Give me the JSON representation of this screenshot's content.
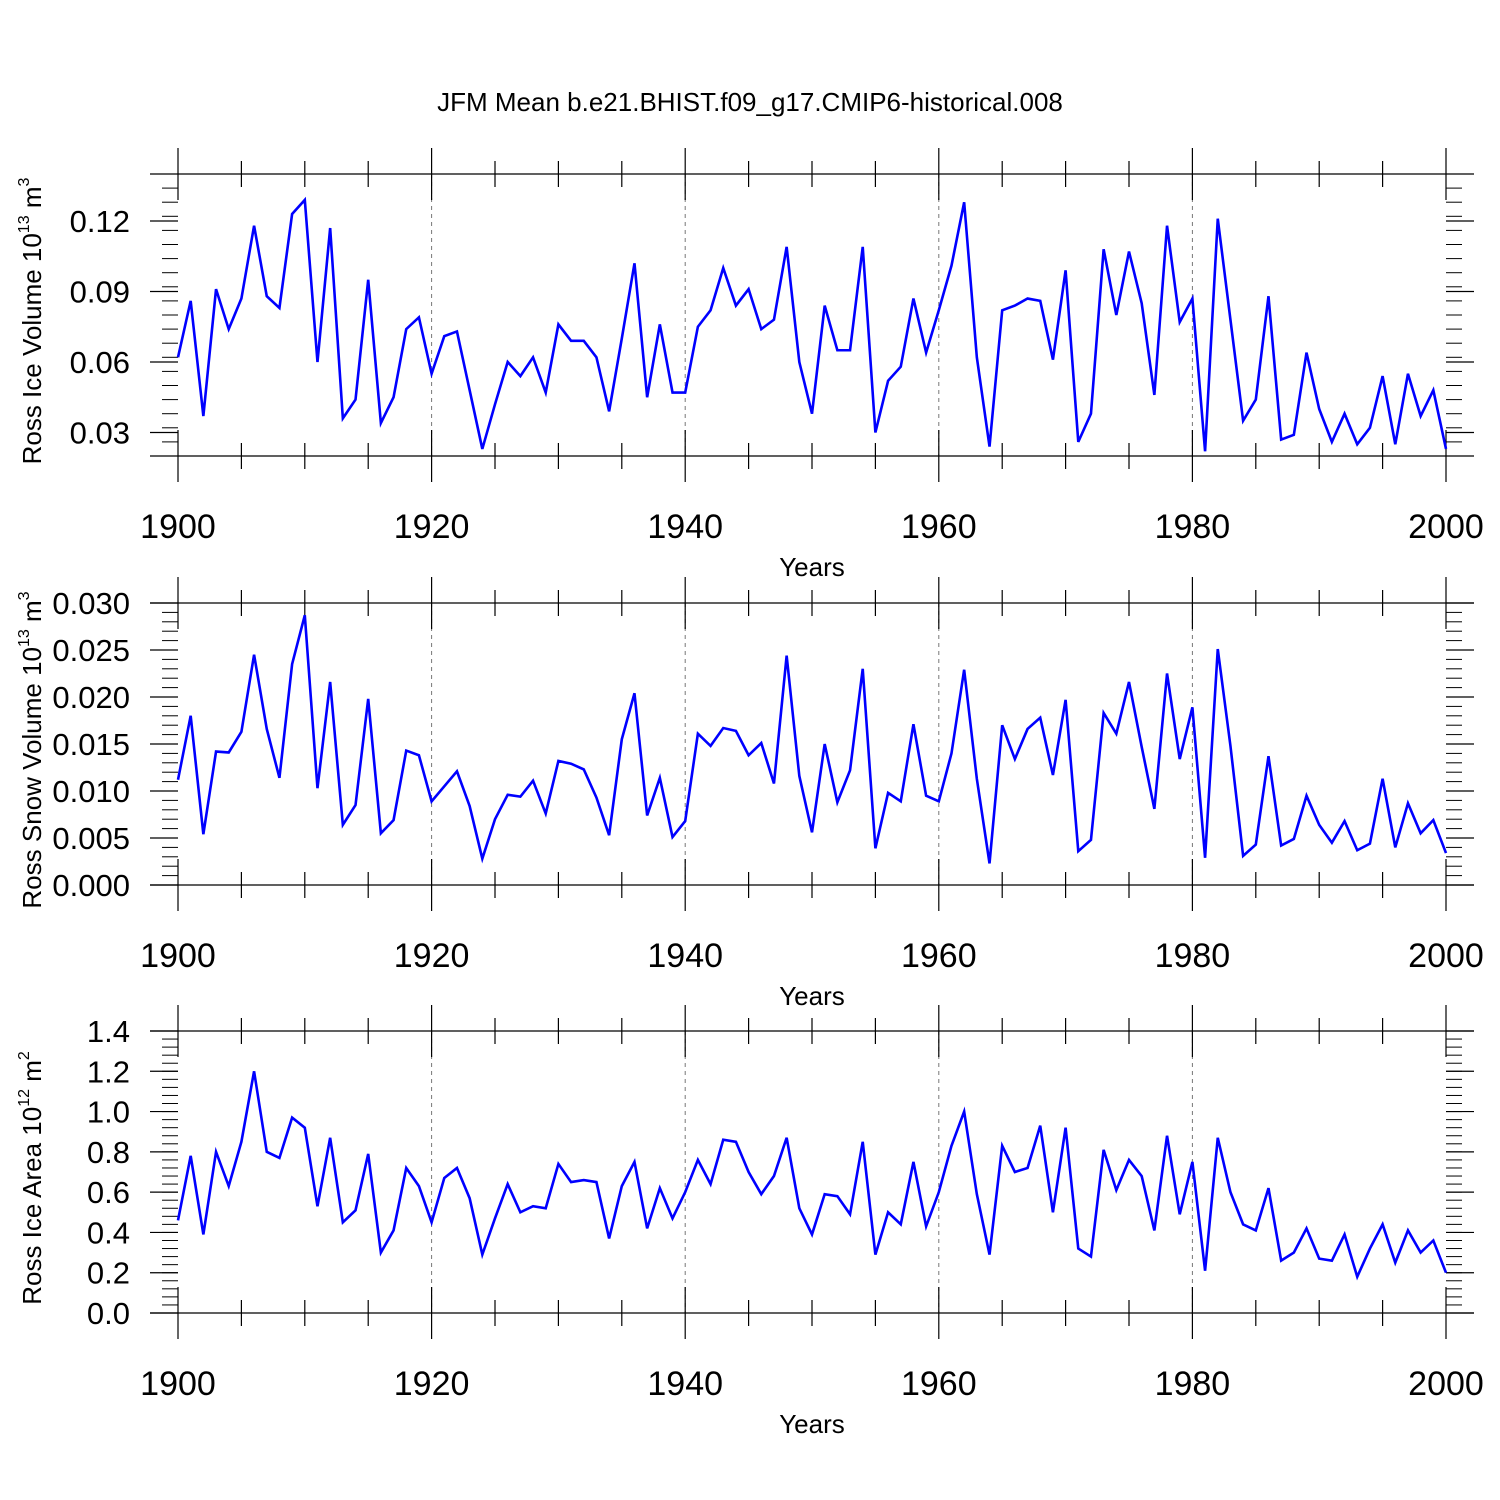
{
  "figure_title": "JFM Mean b.e21.BHIST.f09_g17.CMIP6-historical.008",
  "chart_data": [
    {
      "type": "line",
      "title": "JFM Mean b.e21.BHIST.f09_g17.CMIP6-historical.008",
      "xlabel": "Years",
      "ylabel_main": "Ross Ice Volume 10",
      "ylabel_exp": "13",
      "ylabel_unit": " m",
      "ylabel_unit_exp": "3",
      "xlim": [
        1900,
        2000
      ],
      "ylim": [
        0.02,
        0.14
      ],
      "xticks": [
        1900,
        1920,
        1940,
        1960,
        1980,
        2000
      ],
      "xtick_labels": [
        "1900",
        "1920",
        "1940",
        "1960",
        "1980",
        "2000"
      ],
      "yticks": [
        0.03,
        0.06,
        0.09,
        0.12
      ],
      "ytick_labels": [
        "0.03",
        "0.06",
        "0.09",
        "0.12"
      ],
      "grid": "vertical dashed at major x ticks",
      "series": [
        {
          "name": "Ross Ice Volume",
          "color": "#0000ff",
          "x_start": 1900,
          "values": [
            0.062,
            0.086,
            0.037,
            0.091,
            0.074,
            0.087,
            0.118,
            0.088,
            0.083,
            0.123,
            0.129,
            0.06,
            0.117,
            0.036,
            0.044,
            0.095,
            0.034,
            0.045,
            0.074,
            0.079,
            0.055,
            0.071,
            0.073,
            0.048,
            0.023,
            0.042,
            0.06,
            0.054,
            0.062,
            0.047,
            0.076,
            0.069,
            0.069,
            0.062,
            0.039,
            0.07,
            0.102,
            0.045,
            0.076,
            0.047,
            0.047,
            0.075,
            0.082,
            0.1,
            0.084,
            0.091,
            0.074,
            0.078,
            0.109,
            0.06,
            0.038,
            0.084,
            0.065,
            0.065,
            0.109,
            0.03,
            0.052,
            0.058,
            0.087,
            0.064,
            0.082,
            0.101,
            0.128,
            0.062,
            0.024,
            0.082,
            0.084,
            0.087,
            0.086,
            0.061,
            0.099,
            0.026,
            0.038,
            0.108,
            0.08,
            0.107,
            0.085,
            0.046,
            0.118,
            0.077,
            0.087,
            0.022,
            0.121,
            0.078,
            0.035,
            0.044,
            0.088,
            0.027,
            0.029,
            0.064,
            0.04,
            0.026,
            0.038,
            0.025,
            0.032,
            0.054,
            0.025,
            0.055,
            0.037,
            0.048,
            0.023
          ]
        }
      ]
    },
    {
      "type": "line",
      "xlabel": "Years",
      "ylabel_main": "Ross Snow Volume 10",
      "ylabel_exp": "13",
      "ylabel_unit": " m",
      "ylabel_unit_exp": "3",
      "xlim": [
        1900,
        2000
      ],
      "ylim": [
        0.0,
        0.03
      ],
      "xticks": [
        1900,
        1920,
        1940,
        1960,
        1980,
        2000
      ],
      "xtick_labels": [
        "1900",
        "1920",
        "1940",
        "1960",
        "1980",
        "2000"
      ],
      "yticks": [
        0.0,
        0.005,
        0.01,
        0.015,
        0.02,
        0.025,
        0.03
      ],
      "ytick_labels": [
        "0.000",
        "0.005",
        "0.010",
        "0.015",
        "0.020",
        "0.025",
        "0.030"
      ],
      "grid": "vertical dashed at major x ticks",
      "series": [
        {
          "name": "Ross Snow Volume",
          "color": "#0000ff",
          "x_start": 1900,
          "values": [
            0.0112,
            0.018,
            0.0054,
            0.0142,
            0.0141,
            0.0163,
            0.0245,
            0.0166,
            0.0114,
            0.0235,
            0.0287,
            0.0103,
            0.0216,
            0.0064,
            0.0085,
            0.0198,
            0.0055,
            0.0069,
            0.0143,
            0.0138,
            0.0089,
            0.0105,
            0.0121,
            0.0084,
            0.0028,
            0.007,
            0.0096,
            0.0094,
            0.0111,
            0.0076,
            0.0132,
            0.0129,
            0.0123,
            0.0093,
            0.0053,
            0.0155,
            0.0204,
            0.0074,
            0.0114,
            0.0051,
            0.0068,
            0.0161,
            0.0148,
            0.0167,
            0.0164,
            0.0138,
            0.0151,
            0.0108,
            0.0244,
            0.0116,
            0.0056,
            0.015,
            0.0088,
            0.0122,
            0.023,
            0.0039,
            0.0098,
            0.0089,
            0.0171,
            0.0095,
            0.0089,
            0.014,
            0.0229,
            0.0113,
            0.0023,
            0.017,
            0.0134,
            0.0166,
            0.0178,
            0.0117,
            0.0197,
            0.0036,
            0.0048,
            0.0183,
            0.0161,
            0.0216,
            0.0147,
            0.0081,
            0.0225,
            0.0134,
            0.0189,
            0.0029,
            0.0251,
            0.0148,
            0.0031,
            0.0043,
            0.0137,
            0.0042,
            0.0049,
            0.0095,
            0.0064,
            0.0045,
            0.0068,
            0.0037,
            0.0044,
            0.0113,
            0.004,
            0.0087,
            0.0055,
            0.0069,
            0.0034
          ]
        }
      ]
    },
    {
      "type": "line",
      "xlabel": "Years",
      "ylabel_main": "Ross Ice Area 10",
      "ylabel_exp": "12",
      "ylabel_unit": " m",
      "ylabel_unit_exp": "2",
      "xlim": [
        1900,
        2000
      ],
      "ylim": [
        0.0,
        1.4
      ],
      "xticks": [
        1900,
        1920,
        1940,
        1960,
        1980,
        2000
      ],
      "xtick_labels": [
        "1900",
        "1920",
        "1940",
        "1960",
        "1980",
        "2000"
      ],
      "yticks": [
        0.0,
        0.2,
        0.4,
        0.6,
        0.8,
        1.0,
        1.2,
        1.4
      ],
      "ytick_labels": [
        "0.0",
        "0.2",
        "0.4",
        "0.6",
        "0.8",
        "1.0",
        "1.2",
        "1.4"
      ],
      "grid": "vertical dashed at major x ticks",
      "series": [
        {
          "name": "Ross Ice Area",
          "color": "#0000ff",
          "x_start": 1900,
          "values": [
            0.46,
            0.78,
            0.39,
            0.8,
            0.63,
            0.85,
            1.2,
            0.8,
            0.77,
            0.97,
            0.92,
            0.53,
            0.87,
            0.45,
            0.51,
            0.79,
            0.3,
            0.41,
            0.72,
            0.63,
            0.45,
            0.67,
            0.72,
            0.57,
            0.29,
            0.47,
            0.64,
            0.5,
            0.53,
            0.52,
            0.74,
            0.65,
            0.66,
            0.65,
            0.37,
            0.63,
            0.75,
            0.42,
            0.62,
            0.47,
            0.6,
            0.76,
            0.64,
            0.86,
            0.85,
            0.7,
            0.59,
            0.68,
            0.87,
            0.52,
            0.39,
            0.59,
            0.58,
            0.49,
            0.85,
            0.29,
            0.5,
            0.44,
            0.75,
            0.43,
            0.6,
            0.83,
            1.0,
            0.59,
            0.29,
            0.83,
            0.7,
            0.72,
            0.93,
            0.5,
            0.92,
            0.32,
            0.28,
            0.81,
            0.61,
            0.76,
            0.68,
            0.41,
            0.88,
            0.49,
            0.75,
            0.21,
            0.87,
            0.6,
            0.44,
            0.41,
            0.62,
            0.26,
            0.3,
            0.42,
            0.27,
            0.26,
            0.39,
            0.18,
            0.32,
            0.44,
            0.25,
            0.41,
            0.3,
            0.36,
            0.2
          ]
        }
      ]
    }
  ]
}
